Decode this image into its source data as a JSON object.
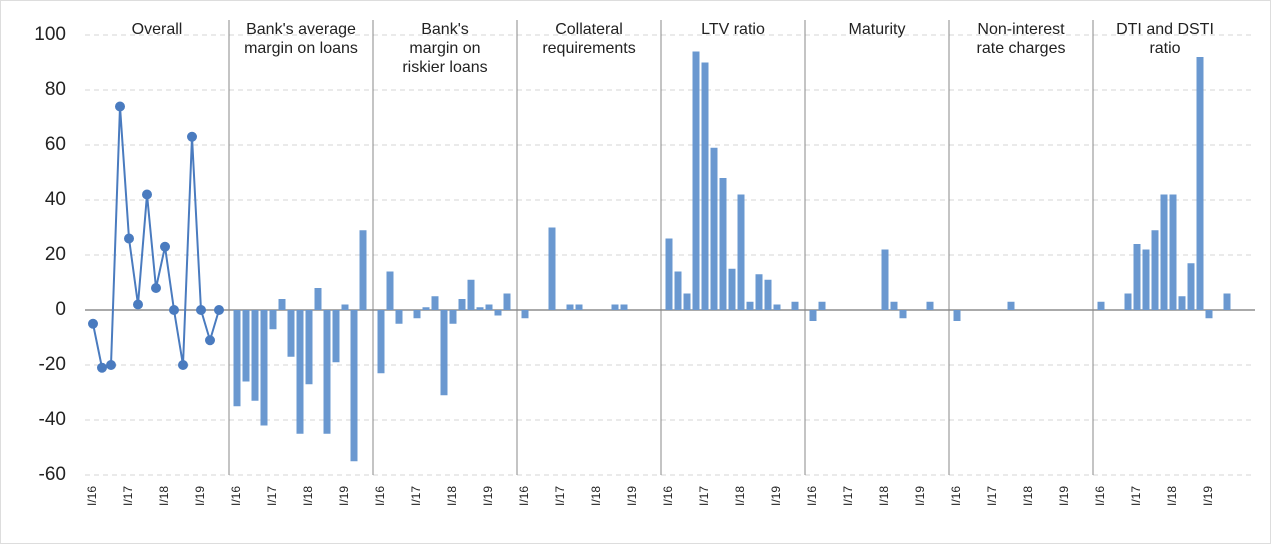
{
  "chart_data": {
    "type": "small-multiples",
    "ylim": [
      -60,
      100
    ],
    "yticks": [
      -60,
      -40,
      -20,
      0,
      20,
      40,
      60,
      80,
      100
    ],
    "grid": true,
    "categories": [
      "I/16",
      null,
      null,
      null,
      "I/17",
      null,
      null,
      null,
      "I/18",
      null,
      null,
      null,
      "I/19",
      null,
      null
    ],
    "panels": [
      {
        "type": "line",
        "title": [
          "Overall"
        ],
        "color": "#4a7bbf",
        "values": [
          -5,
          -21,
          -20,
          74,
          26,
          2,
          42,
          8,
          23,
          0,
          -20,
          63,
          0,
          -11,
          0
        ]
      },
      {
        "type": "bar",
        "title": [
          "Bank's average",
          "margin on loans"
        ],
        "color": "#6a98d0",
        "values": [
          -35,
          -26,
          -33,
          -42,
          -7,
          4,
          -17,
          -45,
          -27,
          8,
          -45,
          -19,
          2,
          -55,
          29
        ]
      },
      {
        "type": "bar",
        "title": [
          "Bank's",
          "margin on",
          "riskier loans"
        ],
        "color": "#6a98d0",
        "values": [
          -23,
          14,
          -5,
          0,
          -3,
          1,
          5,
          -31,
          -5,
          4,
          11,
          1,
          2,
          -2,
          6
        ]
      },
      {
        "type": "bar",
        "title": [
          "Collateral",
          "requirements"
        ],
        "color": "#6a98d0",
        "values": [
          -3,
          0,
          0,
          30,
          0,
          2,
          2,
          0,
          0,
          0,
          2,
          2,
          0,
          0,
          0
        ]
      },
      {
        "type": "bar",
        "title": [
          "LTV ratio"
        ],
        "color": "#6a98d0",
        "values": [
          26,
          14,
          6,
          94,
          90,
          59,
          48,
          15,
          42,
          3,
          13,
          11,
          2,
          0,
          3
        ]
      },
      {
        "type": "bar",
        "title": [
          "Maturity"
        ],
        "color": "#6a98d0",
        "values": [
          -4,
          3,
          0,
          0,
          0,
          0,
          0,
          0,
          22,
          3,
          -3,
          0,
          0,
          3,
          0
        ]
      },
      {
        "type": "bar",
        "title": [
          "Non-interest",
          "rate charges"
        ],
        "color": "#6a98d0",
        "values": [
          -4,
          0,
          0,
          0,
          0,
          0,
          3,
          0,
          0,
          0,
          0,
          0,
          0,
          0,
          0
        ]
      },
      {
        "type": "bar",
        "title": [
          "DTI and DSTI",
          "ratio"
        ],
        "color": "#6a98d0",
        "values": [
          3,
          0,
          0,
          6,
          24,
          22,
          29,
          42,
          42,
          5,
          17,
          92,
          -3,
          0,
          6
        ]
      }
    ]
  }
}
